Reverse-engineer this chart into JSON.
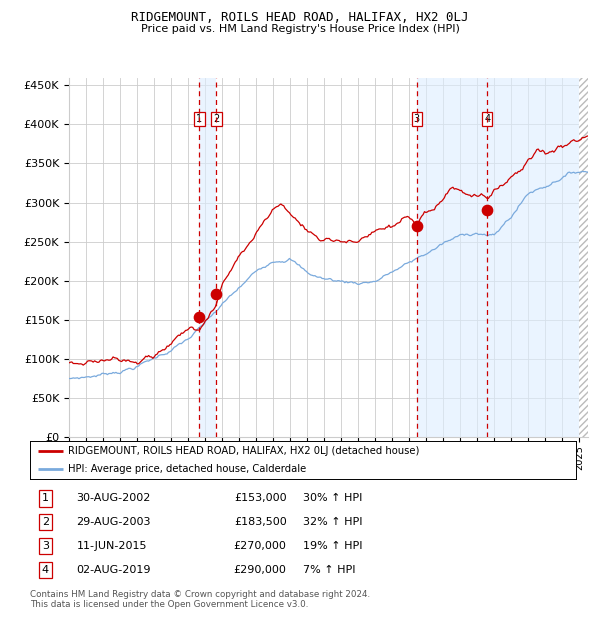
{
  "title": "RIDGEMOUNT, ROILS HEAD ROAD, HALIFAX, HX2 0LJ",
  "subtitle": "Price paid vs. HM Land Registry's House Price Index (HPI)",
  "legend_red": "RIDGEMOUNT, ROILS HEAD ROAD, HALIFAX, HX2 0LJ (detached house)",
  "legend_blue": "HPI: Average price, detached house, Calderdale",
  "footer1": "Contains HM Land Registry data © Crown copyright and database right 2024.",
  "footer2": "This data is licensed under the Open Government Licence v3.0.",
  "transactions": [
    {
      "num": 1,
      "date": "30-AUG-2002",
      "price": "£153,000",
      "change": "30% ↑ HPI",
      "year": 2002.66
    },
    {
      "num": 2,
      "date": "29-AUG-2003",
      "price": "£183,500",
      "change": "32% ↑ HPI",
      "year": 2003.66
    },
    {
      "num": 3,
      "date": "11-JUN-2015",
      "price": "£270,000",
      "change": "19% ↑ HPI",
      "year": 2015.44
    },
    {
      "num": 4,
      "date": "02-AUG-2019",
      "price": "£290,000",
      "change": "7% ↑ HPI",
      "year": 2019.58
    }
  ],
  "sale_prices": [
    153000,
    183500,
    270000,
    290000
  ],
  "ylim": [
    0,
    460000
  ],
  "xlim_start": 1995.0,
  "xlim_end": 2025.5,
  "red_color": "#cc0000",
  "blue_color": "#7aaadd",
  "shade_color": "#ddeeff",
  "background_color": "#ffffff",
  "grid_color": "#cccccc"
}
